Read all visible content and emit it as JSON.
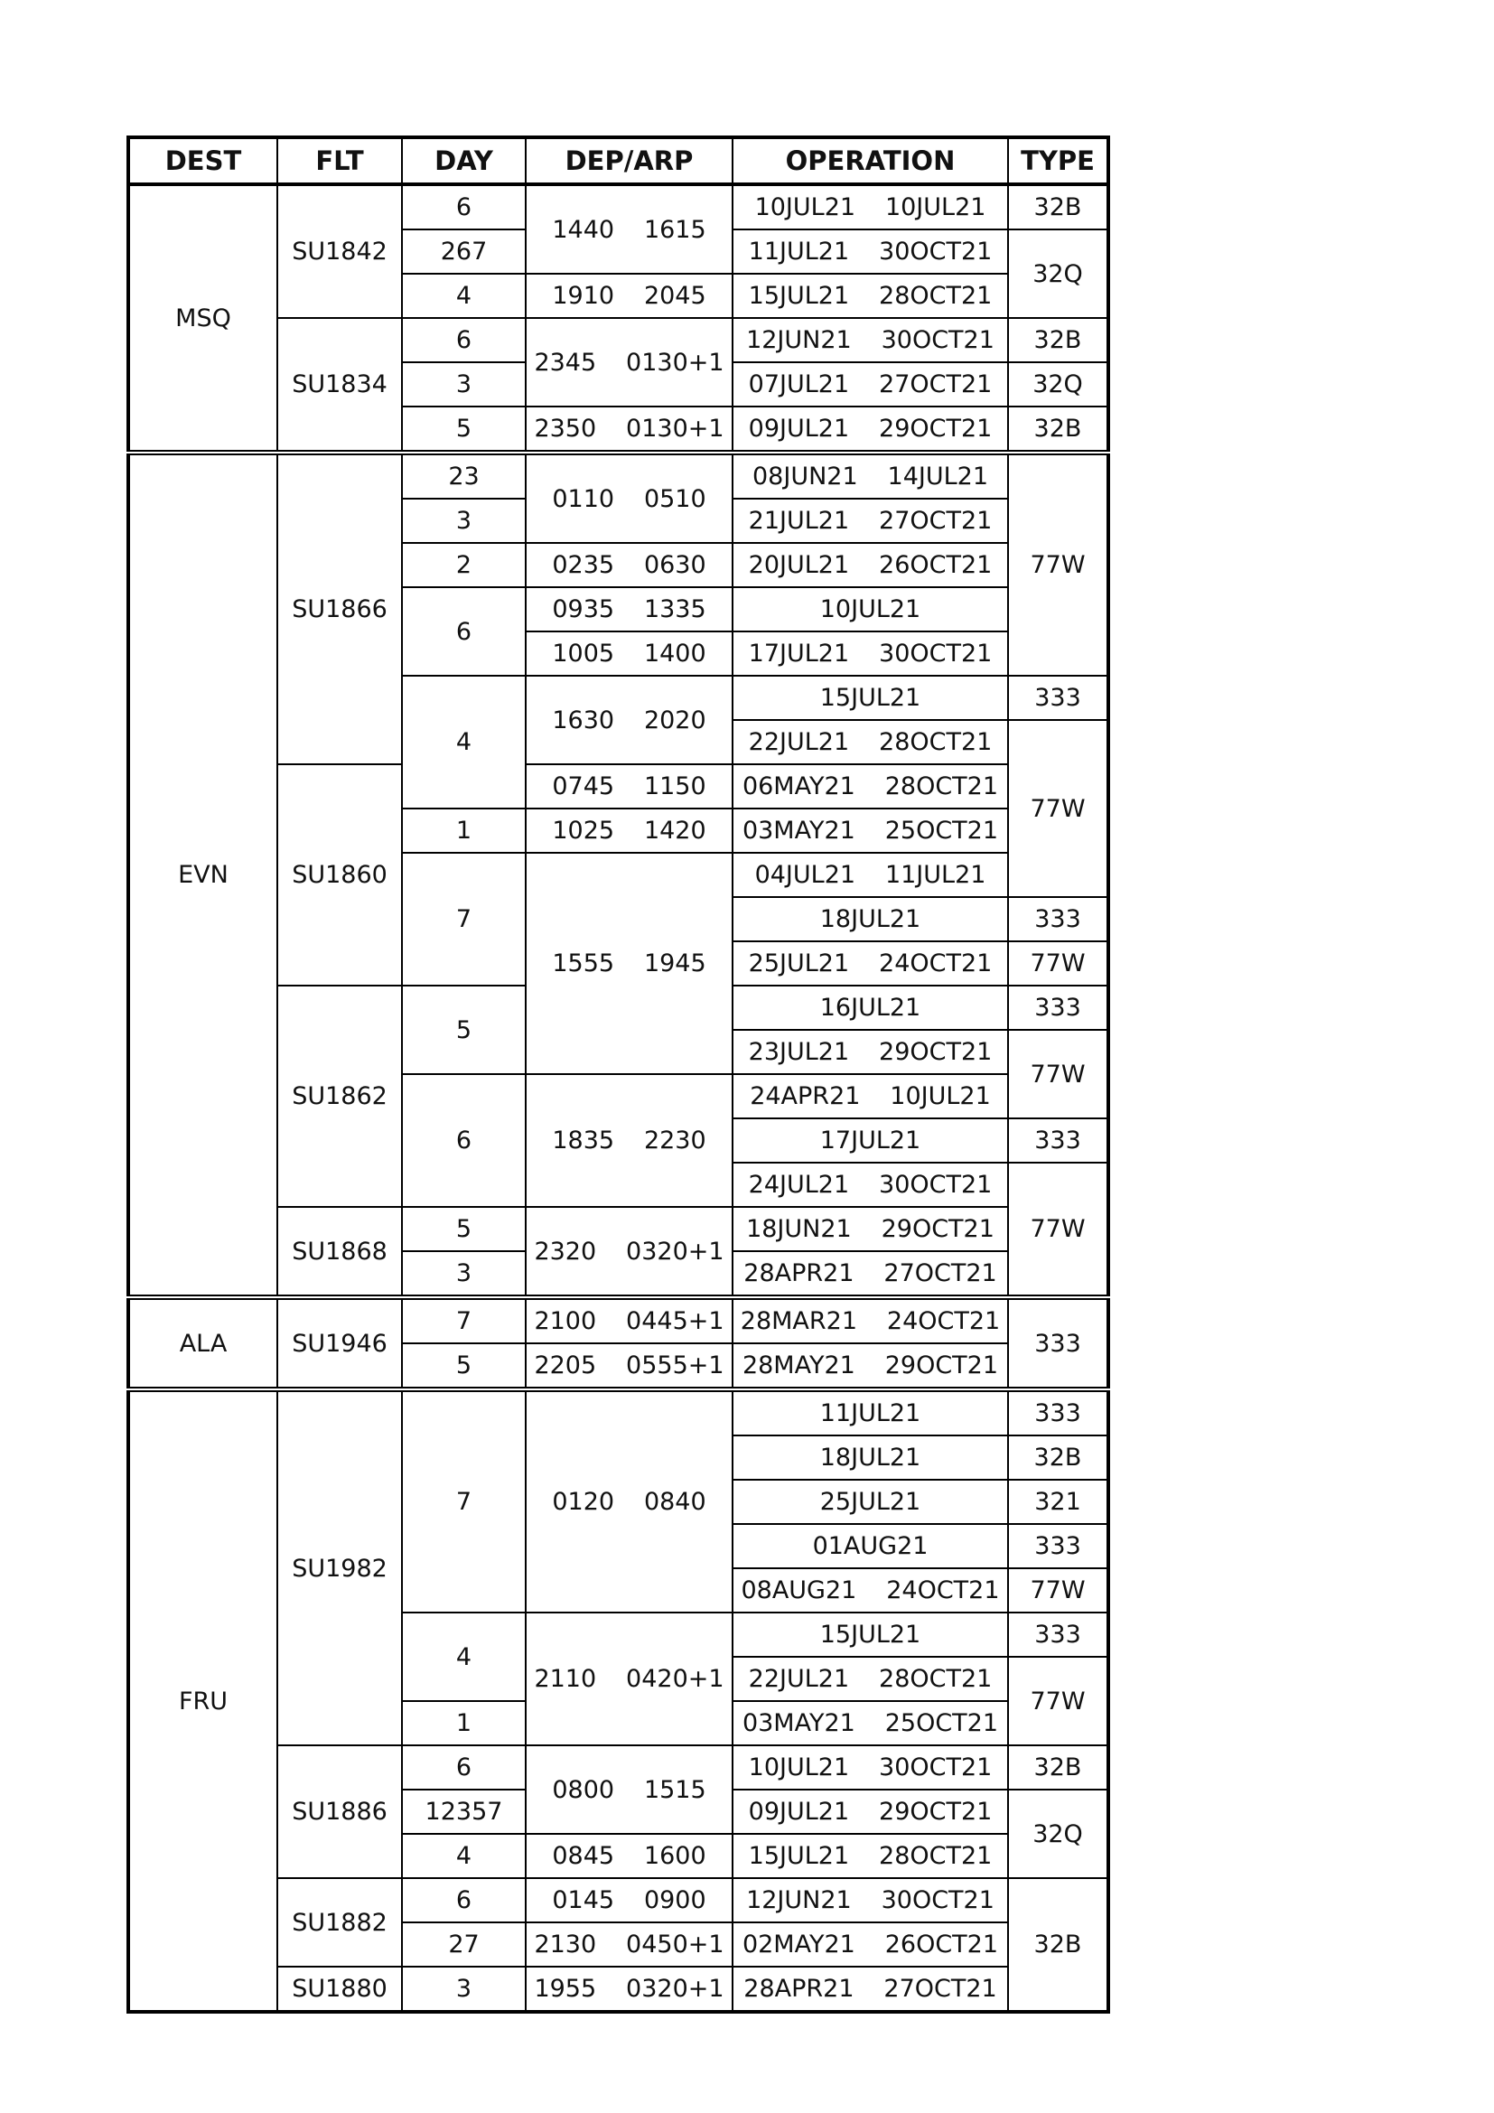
{
  "table": {
    "header": [
      "DEST",
      "FLT",
      "DAY",
      "DEP/ARP",
      "OPERATION",
      "TYPE"
    ],
    "rows": [
      [
        "MSQ",
        "SU1842",
        "6",
        "1440 1615",
        "10JUL21 10JUL21",
        "32B"
      ],
      [
        "267",
        "11JUL21 30OCT21",
        "32Q"
      ],
      [
        "4",
        "1910 2045",
        "15JUL21 28OCT21"
      ],
      [
        "SU1834",
        "6",
        "2345 0130+1",
        "12JUN21 30OCT21",
        "32B"
      ],
      [
        "3",
        "07JUL21 27OCT21",
        "32Q"
      ],
      [
        "5",
        "2350 0130+1",
        "09JUL21 29OCT21",
        "32B"
      ],
      [
        "EVN",
        "SU1866",
        "23",
        "0110 0510",
        "08JUN21 14JUL21",
        "77W"
      ],
      [
        "3",
        "21JUL21 27OCT21"
      ],
      [
        "2",
        "0235 0630",
        "20JUL21 26OCT21"
      ],
      [
        "6",
        "0935 1335",
        "10JUL21"
      ],
      [
        "1005 1400",
        "17JUL21 30OCT21"
      ],
      [
        "4",
        "1630 2020",
        "15JUL21",
        "333"
      ],
      [
        "22JUL21 28OCT21",
        "77W"
      ],
      [
        "SU1860",
        "0745 1150",
        "06MAY21 28OCT21"
      ],
      [
        "1",
        "1025 1420",
        "03MAY21 25OCT21"
      ],
      [
        "7",
        "1555 1945",
        "04JUL21 11JUL21"
      ],
      [
        "18JUL21",
        "333"
      ],
      [
        "25JUL21 24OCT21",
        "77W"
      ],
      [
        "SU1862",
        "5",
        "16JUL21",
        "333"
      ],
      [
        "23JUL21 29OCT21",
        "77W"
      ],
      [
        "6",
        "1835 2230",
        "24APR21 10JUL21"
      ],
      [
        "17JUL21",
        "333"
      ],
      [
        "24JUL21 30OCT21",
        "77W"
      ],
      [
        "SU1868",
        "5",
        "2320 0320+1",
        "18JUN21 29OCT21"
      ],
      [
        "3",
        "28APR21 27OCT21"
      ],
      [
        "ALA",
        "SU1946",
        "7",
        "2100 0445+1",
        "28MAR21 24OCT21",
        "333"
      ],
      [
        "5",
        "2205 0555+1",
        "28MAY21 29OCT21"
      ],
      [
        "FRU",
        "SU1982",
        "7",
        "0120 0840",
        "11JUL21",
        "333"
      ],
      [
        "18JUL21",
        "32B"
      ],
      [
        "25JUL21",
        "321"
      ],
      [
        "01AUG21",
        "333"
      ],
      [
        "08AUG21 24OCT21",
        "77W"
      ],
      [
        "4",
        "2110 0420+1",
        "15JUL21",
        "333"
      ],
      [
        "22JUL21 28OCT21",
        "77W"
      ],
      [
        "1",
        "03MAY21 25OCT21"
      ],
      [
        "SU1886",
        "6",
        "0800 1515",
        "10JUL21 30OCT21",
        "32B"
      ],
      [
        "12357",
        "09JUL21 29OCT21",
        "32Q"
      ],
      [
        "4",
        "0845 1600",
        "15JUL21 28OCT21"
      ],
      [
        "SU1882",
        "6",
        "0145 0900",
        "12JUN21 30OCT21",
        "32B"
      ],
      [
        "27",
        "2130 0450+1",
        "02MAY21 26OCT21"
      ],
      [
        "SU1880",
        "3",
        "1955 0320+1",
        "28APR21 27OCT21"
      ]
    ]
  }
}
